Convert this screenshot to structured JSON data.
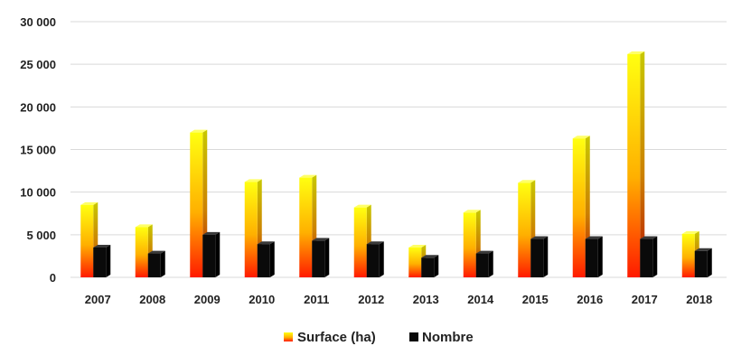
{
  "chart_data": {
    "type": "bar",
    "categories": [
      "2007",
      "2008",
      "2009",
      "2010",
      "2011",
      "2012",
      "2013",
      "2014",
      "2015",
      "2016",
      "2017",
      "2018"
    ],
    "series": [
      {
        "name": "Surface (ha)",
        "values": [
          8500,
          5900,
          17000,
          11200,
          11700,
          8200,
          3500,
          7600,
          11100,
          16300,
          26200,
          5100
        ]
      },
      {
        "name": "Nombre",
        "values": [
          3500,
          2800,
          5000,
          3900,
          4300,
          3900,
          2300,
          2800,
          4500,
          4500,
          4500,
          3100
        ]
      }
    ],
    "ylim": [
      0,
      30000
    ],
    "yticks": [
      0,
      5000,
      10000,
      15000,
      20000,
      25000,
      30000
    ],
    "ytick_labels": [
      "0",
      "5 000",
      "10 000",
      "15 000",
      "20 000",
      "25 000",
      "30 000"
    ],
    "grid": true,
    "legend_position": "bottom",
    "colors": {
      "surface_top": "#ffff00",
      "surface_bottom": "#ff2000",
      "nombre": "#0a0a0a",
      "grid": "#d9d9d9"
    }
  }
}
